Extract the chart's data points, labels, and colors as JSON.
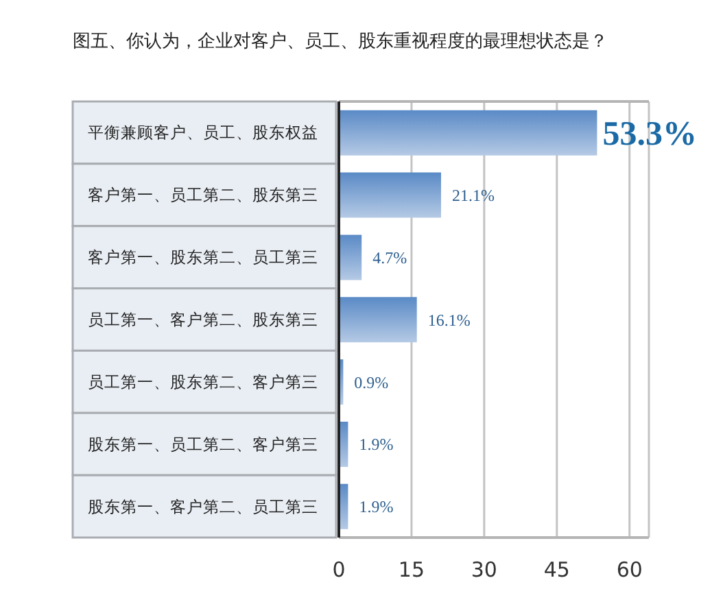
{
  "chart_data": {
    "type": "bar",
    "orientation": "horizontal",
    "title": "图五、你认为，企业对客户、员工、股东重视程度的最理想状态是？",
    "categories": [
      "平衡兼顾客户、员工、股东权益",
      "客户第一、员工第二、股东第三",
      "客户第一、股东第二、员工第三",
      "员工第一、客户第二、股东第三",
      "员工第一、股东第二、客户第三",
      "股东第一、员工第二、客户第三",
      "股东第一、客户第二、员工第三"
    ],
    "values": [
      53.3,
      21.1,
      4.7,
      16.1,
      0.9,
      1.9,
      1.9
    ],
    "value_labels": [
      "53.3%",
      "21.1%",
      "4.7%",
      "16.1%",
      "0.9%",
      "1.9%",
      "1.9%"
    ],
    "color": "#5a8ac6",
    "xlim": [
      0,
      64
    ],
    "xticks": [
      0,
      15,
      30,
      45,
      60
    ],
    "grid": "x"
  }
}
